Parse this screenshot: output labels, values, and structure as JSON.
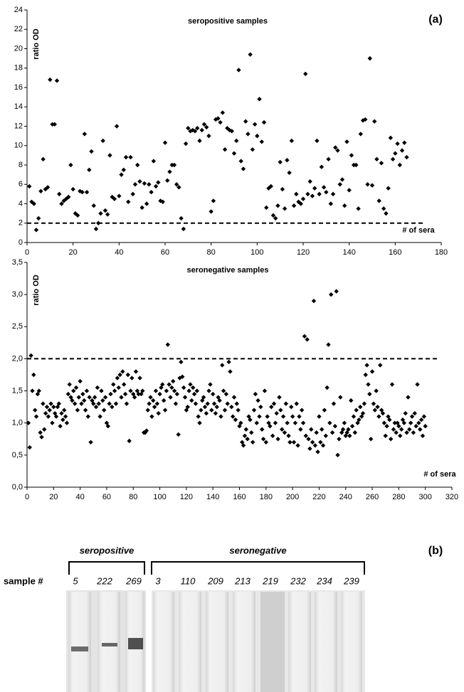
{
  "chart_data": [
    {
      "type": "scatter",
      "title": "seropositive samples",
      "panel_label": "(a)",
      "x_label": "# of sera",
      "y_label": "ratio OD",
      "color": "#000000",
      "xlim": [
        0,
        180
      ],
      "ylim": [
        0,
        24
      ],
      "xticks": [
        0,
        20,
        40,
        60,
        80,
        100,
        120,
        140,
        160,
        180
      ],
      "yticks": [
        0,
        2,
        4,
        6,
        8,
        10,
        12,
        14,
        16,
        18,
        20,
        22,
        24
      ],
      "reference_line": {
        "y": 2,
        "x_end": 172,
        "style": "dashed"
      },
      "x": [
        1,
        2,
        3,
        4,
        5,
        6,
        7,
        8,
        9,
        10,
        11,
        12,
        13,
        14,
        15,
        16,
        17,
        18,
        19,
        20,
        21,
        22,
        23,
        24,
        25,
        26,
        27,
        28,
        29,
        30,
        31,
        32,
        33,
        34,
        35,
        36,
        37,
        38,
        39,
        40,
        41,
        42,
        43,
        44,
        45,
        46,
        47,
        48,
        49,
        50,
        51,
        52,
        53,
        54,
        55,
        56,
        57,
        58,
        59,
        60,
        61,
        62,
        63,
        64,
        65,
        66,
        67,
        68,
        69,
        70,
        71,
        72,
        73,
        74,
        75,
        76,
        77,
        78,
        79,
        80,
        81,
        82,
        83,
        84,
        85,
        86,
        87,
        88,
        89,
        90,
        91,
        92,
        93,
        94,
        95,
        96,
        97,
        98,
        99,
        100,
        101,
        102,
        103,
        104,
        105,
        106,
        107,
        108,
        109,
        110,
        111,
        112,
        113,
        114,
        115,
        116,
        117,
        118,
        119,
        120,
        121,
        122,
        123,
        124,
        125,
        126,
        127,
        128,
        129,
        130,
        131,
        132,
        133,
        134,
        135,
        136,
        137,
        138,
        139,
        140,
        141,
        142,
        143,
        144,
        145,
        146,
        147,
        148,
        149,
        150,
        151,
        152,
        153,
        154,
        155,
        156,
        157,
        158,
        159,
        160,
        161,
        162,
        163,
        164,
        165
      ],
      "values": [
        5.8,
        4.2,
        4.0,
        1.3,
        2.5,
        5.3,
        8.6,
        5.5,
        5.7,
        16.8,
        12.2,
        12.2,
        16.7,
        5.0,
        4.0,
        4.3,
        4.5,
        4.7,
        8.0,
        5.5,
        3.0,
        2.8,
        5.3,
        5.2,
        11.2,
        5.2,
        7.5,
        9.4,
        3.8,
        1.4,
        2.0,
        3.0,
        10.5,
        3.3,
        2.9,
        9.0,
        4.7,
        4.5,
        12.0,
        4.8,
        7.0,
        7.5,
        8.8,
        4.2,
        8.8,
        5.0,
        6.0,
        8.0,
        6.3,
        3.6,
        6.1,
        4.0,
        6.0,
        5.2,
        8.4,
        5.8,
        6.2,
        4.3,
        4.2,
        10.3,
        6.4,
        7.3,
        8.0,
        8.0,
        6.0,
        5.7,
        2.5,
        1.4,
        10.2,
        11.8,
        11.5,
        11.6,
        11.5,
        11.8,
        10.5,
        11.6,
        12.2,
        11.9,
        11.0,
        3.2,
        4.3,
        12.7,
        12.8,
        12.4,
        13.4,
        9.6,
        11.8,
        11.6,
        11.5,
        9.2,
        10.5,
        17.8,
        8.4,
        7.6,
        12.5,
        11.2,
        19.4,
        9.6,
        12.2,
        11.0,
        14.8,
        10.4,
        12.4,
        3.6,
        5.6,
        5.8,
        2.8,
        2.5,
        3.8,
        8.3,
        5.5,
        3.5,
        8.5,
        7.2,
        10.5,
        3.8,
        5.0,
        4.2,
        4.0,
        4.5,
        17.4,
        5.0,
        6.3,
        4.8,
        5.6,
        10.5,
        5.0,
        7.8,
        5.7,
        5.2,
        8.6,
        4.0,
        5.0,
        9.8,
        9.5,
        6.0,
        6.5,
        3.8,
        10.4,
        5.4,
        9.0,
        8.0,
        8.0,
        3.5,
        11.2,
        12.6,
        12.7,
        6.0,
        19.0,
        5.9,
        12.5,
        8.6,
        4.3,
        8.2,
        3.5,
        3.0,
        5.6,
        10.8,
        8.6,
        9.2,
        10.2,
        8.0,
        9.5,
        10.3,
        8.8
      ]
    },
    {
      "type": "scatter",
      "title": "seronegative samples",
      "x_label": "# of sera",
      "y_label": "ratio OD",
      "color": "#000000",
      "xlim": [
        0,
        320
      ],
      "ylim": [
        0,
        3.5
      ],
      "xticks": [
        0,
        20,
        40,
        60,
        80,
        100,
        120,
        140,
        160,
        180,
        200,
        220,
        240,
        260,
        280,
        300,
        320
      ],
      "yticks": [
        {
          "value": 0,
          "label": "0,0"
        },
        {
          "value": 0.5,
          "label": "0,5"
        },
        {
          "value": 1,
          "label": "1,0"
        },
        {
          "value": 1.5,
          "label": "1,5"
        },
        {
          "value": 2,
          "label": "2,0"
        },
        {
          "value": 2.5,
          "label": "2,5"
        },
        {
          "value": 3,
          "label": "3,0"
        },
        {
          "value": 3.5,
          "label": "3,5"
        }
      ],
      "reference_line": {
        "y": 2,
        "x_end": 310,
        "style": "dashed"
      },
      "x": [
        1,
        2,
        3,
        4,
        5,
        6,
        7,
        8,
        9,
        10,
        11,
        12,
        13,
        14,
        15,
        16,
        17,
        18,
        19,
        20,
        21,
        22,
        23,
        24,
        25,
        26,
        27,
        28,
        29,
        30,
        31,
        32,
        33,
        34,
        35,
        36,
        37,
        38,
        39,
        40,
        41,
        42,
        43,
        44,
        45,
        46,
        47,
        48,
        49,
        50,
        51,
        52,
        53,
        54,
        55,
        56,
        57,
        58,
        59,
        60,
        61,
        62,
        63,
        64,
        65,
        66,
        67,
        68,
        69,
        70,
        71,
        72,
        73,
        74,
        75,
        76,
        77,
        78,
        79,
        80,
        81,
        82,
        83,
        84,
        85,
        86,
        87,
        88,
        89,
        90,
        91,
        92,
        93,
        94,
        95,
        96,
        97,
        98,
        99,
        100,
        101,
        102,
        103,
        104,
        105,
        106,
        107,
        108,
        109,
        110,
        111,
        112,
        113,
        114,
        115,
        116,
        117,
        118,
        119,
        120,
        121,
        122,
        123,
        124,
        125,
        126,
        127,
        128,
        129,
        130,
        131,
        132,
        133,
        134,
        135,
        136,
        137,
        138,
        139,
        140,
        141,
        142,
        143,
        144,
        145,
        146,
        147,
        148,
        149,
        150,
        151,
        152,
        153,
        154,
        155,
        156,
        157,
        158,
        159,
        160,
        161,
        162,
        163,
        164,
        165,
        166,
        167,
        168,
        169,
        170,
        171,
        172,
        173,
        174,
        175,
        176,
        177,
        178,
        179,
        180,
        181,
        182,
        183,
        184,
        185,
        186,
        187,
        188,
        189,
        190,
        191,
        192,
        193,
        194,
        195,
        196,
        197,
        198,
        199,
        200,
        201,
        202,
        203,
        204,
        205,
        206,
        207,
        208,
        209,
        210,
        211,
        212,
        213,
        214,
        215,
        216,
        217,
        218,
        219,
        220,
        221,
        222,
        223,
        224,
        225,
        226,
        227,
        228,
        229,
        230,
        231,
        232,
        233,
        234,
        235,
        236,
        237,
        238,
        239,
        240,
        241,
        242,
        243,
        244,
        245,
        246,
        247,
        248,
        249,
        250,
        251,
        252,
        253,
        254,
        255,
        256,
        257,
        258,
        259,
        260,
        261,
        262,
        263,
        264,
        265,
        266,
        267,
        268,
        269,
        270,
        271,
        272,
        273,
        274,
        275,
        276,
        277,
        278,
        279,
        280,
        281,
        282,
        283,
        284,
        285,
        286,
        287,
        288,
        289,
        290,
        291,
        292,
        293,
        294,
        295,
        296,
        297,
        298,
        299,
        300
      ],
      "values": [
        1.0,
        0.62,
        2.05,
        1.5,
        1.75,
        1.2,
        1.1,
        1.45,
        1.5,
        0.85,
        0.78,
        1.3,
        0.9,
        1.15,
        1.25,
        1.1,
        1.2,
        1.3,
        1.0,
        1.25,
        1.15,
        1.1,
        1.25,
        1.3,
        0.95,
        1.15,
        1.05,
        1.2,
        1.1,
        1.0,
        1.45,
        1.6,
        1.4,
        1.35,
        1.5,
        1.3,
        1.55,
        1.2,
        1.4,
        1.65,
        1.3,
        1.45,
        1.35,
        1.2,
        1.5,
        1.1,
        1.4,
        0.7,
        1.35,
        1.3,
        1.4,
        1.25,
        1.55,
        1.3,
        1.1,
        1.5,
        1.35,
        1.2,
        1.4,
        1.0,
        0.95,
        1.3,
        1.45,
        1.25,
        1.6,
        1.5,
        1.3,
        1.7,
        1.55,
        1.75,
        1.4,
        1.8,
        1.6,
        1.45,
        1.3,
        1.75,
        0.72,
        1.5,
        1.7,
        1.45,
        1.4,
        1.8,
        1.5,
        1.45,
        1.7,
        1.45,
        1.5,
        0.85,
        0.85,
        0.88,
        1.2,
        1.3,
        1.4,
        1.1,
        1.35,
        1.25,
        1.5,
        1.3,
        1.15,
        1.45,
        1.55,
        1.6,
        1.35,
        1.2,
        1.5,
        2.22,
        1.6,
        1.4,
        1.55,
        1.65,
        1.5,
        1.3,
        1.45,
        0.82,
        1.7,
        1.95,
        1.72,
        1.55,
        1.4,
        1.2,
        1.25,
        1.5,
        1.6,
        1.35,
        1.55,
        1.45,
        1.3,
        1.5,
        1.1,
        1.0,
        1.2,
        1.35,
        1.4,
        1.25,
        1.15,
        1.3,
        1.5,
        1.6,
        1.2,
        1.45,
        1.3,
        1.15,
        1.25,
        1.4,
        1.35,
        1.1,
        1.9,
        1.5,
        1.2,
        1.45,
        1.3,
        1.95,
        1.8,
        1.25,
        1.1,
        1.4,
        1.05,
        1.3,
        1.2,
        0.95,
        1.0,
        0.7,
        0.65,
        0.8,
        0.9,
        0.75,
        1.1,
        1.05,
        0.85,
        0.7,
        1.2,
        1.45,
        1.0,
        1.35,
        1.1,
        1.25,
        0.9,
        0.75,
        1.5,
        0.7,
        1.1,
        1.0,
        0.95,
        1.25,
        0.8,
        1.3,
        1.0,
        1.15,
        0.75,
        1.4,
        1.2,
        0.9,
        1.1,
        0.85,
        1.3,
        1.0,
        0.8,
        0.7,
        1.25,
        1.1,
        0.7,
        1.0,
        1.3,
        0.65,
        1.1,
        0.9,
        1.2,
        1.0,
        2.35,
        0.8,
        2.3,
        0.75,
        0.6,
        0.9,
        0.7,
        2.9,
        0.65,
        0.85,
        0.55,
        1.1,
        0.7,
        0.9,
        0.65,
        1.2,
        0.8,
        1.55,
        2.22,
        1.0,
        3.0,
        0.85,
        1.3,
        0.95,
        3.05,
        0.5,
        0.75,
        1.4,
        0.85,
        0.9,
        1.0,
        0.8,
        0.85,
        0.9,
        0.8,
        1.35,
        0.95,
        1.1,
        0.85,
        1.2,
        1.0,
        1.05,
        1.25,
        1.1,
        1.15,
        1.3,
        1.75,
        1.9,
        1.6,
        1.45,
        0.75,
        1.8,
        1.3,
        1.2,
        1.5,
        1.25,
        1.1,
        1.9,
        1.2,
        1.15,
        1.0,
        0.8,
        0.95,
        1.1,
        1.05,
        0.75,
        1.6,
        0.9,
        1.0,
        0.85,
        1.0,
        0.95,
        0.8,
        0.9,
        1.05,
        1.0,
        1.15,
        0.85,
        1.4,
        0.9,
        1.0,
        1.1,
        0.85,
        1.15,
        0.95,
        1.6,
        1.0,
        0.9,
        1.05,
        0.8,
        1.1,
        0.95
      ]
    }
  ],
  "figure_b": {
    "label": "(b)",
    "groups": [
      "seropositive",
      "seronegative"
    ],
    "row_label": "sample #",
    "samples": [
      "5",
      "222",
      "269",
      "3",
      "110",
      "209",
      "213",
      "219",
      "232",
      "234",
      "239"
    ]
  }
}
